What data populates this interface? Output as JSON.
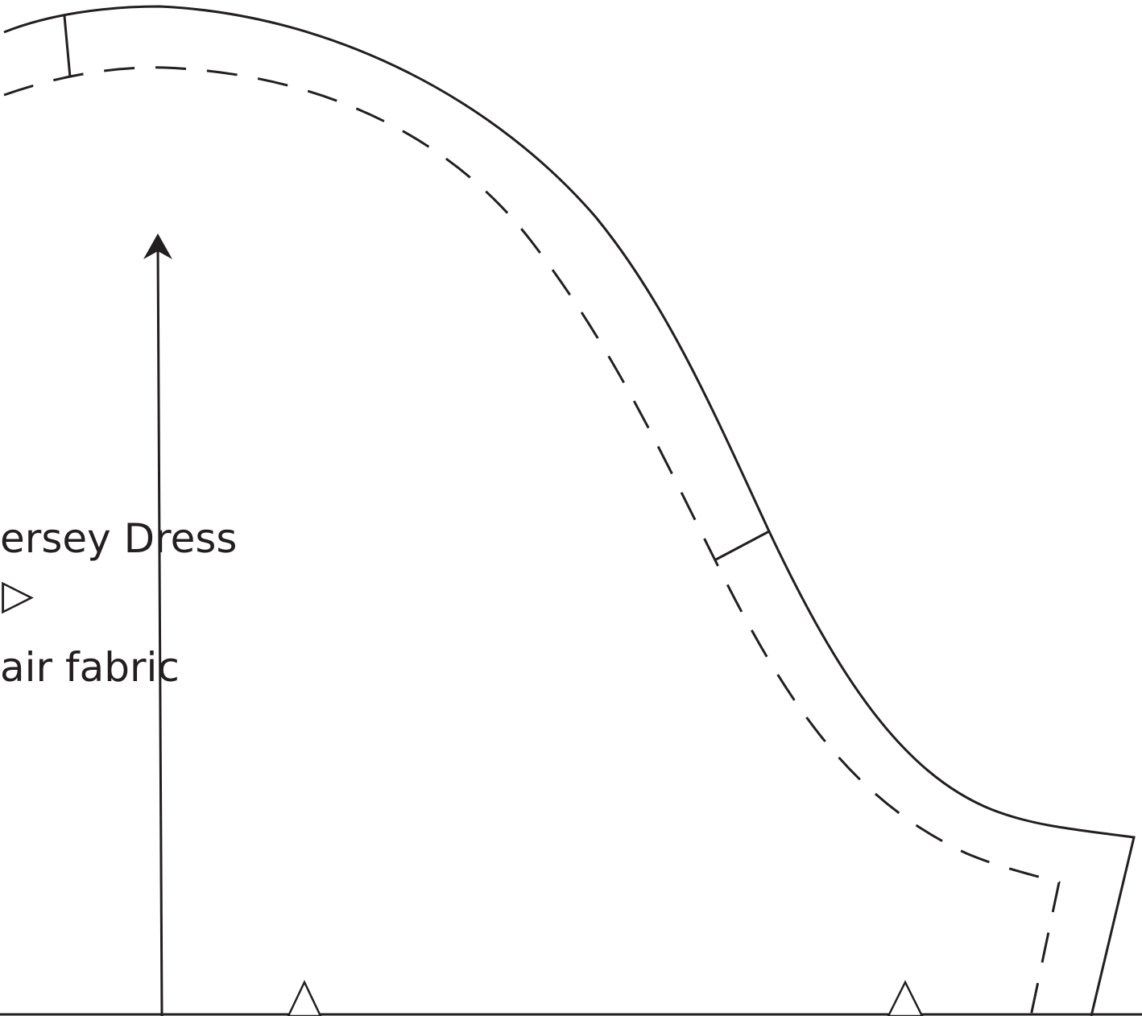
{
  "pattern_piece": {
    "labels": {
      "title": "ersey Dress",
      "fold_symbol": "▷",
      "fabric": "air fabric"
    },
    "colors": {
      "line": "#231f20",
      "background": "#ffffff"
    },
    "icons": {
      "grainline": "grainline-arrow-icon",
      "notch": "notch-triangle-icon",
      "fold": "fold-triangle-icon"
    }
  }
}
